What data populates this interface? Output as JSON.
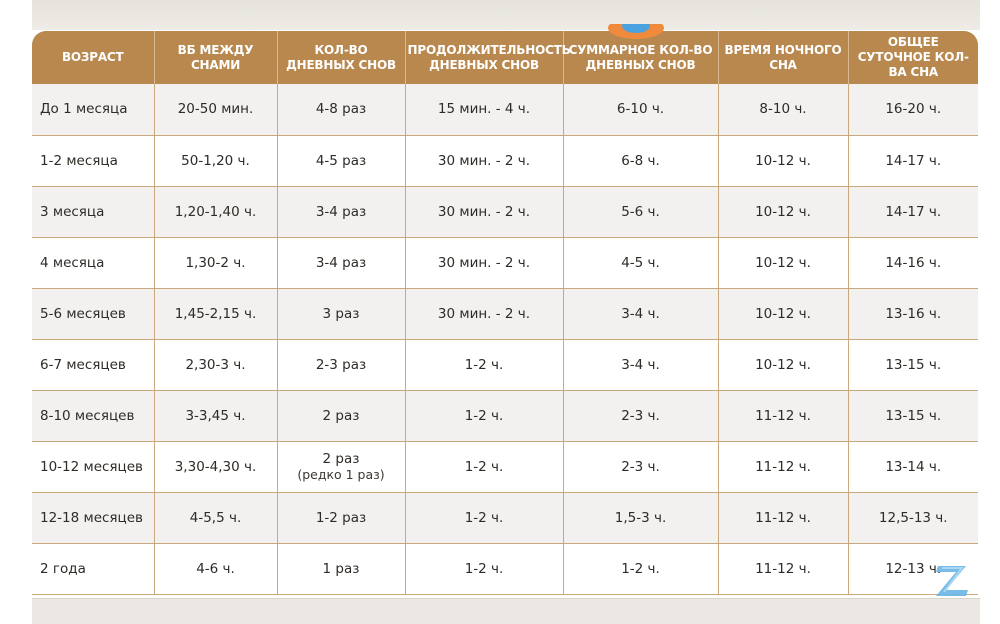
{
  "table": {
    "headers": [
      "Возраст",
      "ВБ между снами",
      "Кол-во дневных снов",
      "Продолжительность дневных снов",
      "Суммарное кол-во дневных снов",
      "Время ночного сна",
      "Общее суточное кол-ва сна"
    ],
    "rows": [
      {
        "age": "До 1 месяца",
        "wake": "20-50 мин.",
        "naps": "4-8 раз",
        "nap_note": "",
        "nap_len": "15 мин. - 4 ч.",
        "day_total": "6-10 ч.",
        "night": "8-10 ч.",
        "total": "16-20 ч."
      },
      {
        "age": "1-2 месяца",
        "wake": "50-1,20 ч.",
        "naps": "4-5 раз",
        "nap_note": "",
        "nap_len": "30 мин. - 2 ч.",
        "day_total": "6-8 ч.",
        "night": "10-12 ч.",
        "total": "14-17 ч."
      },
      {
        "age": "3 месяца",
        "wake": "1,20-1,40 ч.",
        "naps": "3-4 раз",
        "nap_note": "",
        "nap_len": "30 мин. - 2 ч.",
        "day_total": "5-6 ч.",
        "night": "10-12 ч.",
        "total": "14-17 ч."
      },
      {
        "age": "4 месяца",
        "wake": "1,30-2 ч.",
        "naps": "3-4 раз",
        "nap_note": "",
        "nap_len": "30 мин. - 2 ч.",
        "day_total": "4-5 ч.",
        "night": "10-12 ч.",
        "total": "14-16 ч."
      },
      {
        "age": "5-6 месяцев",
        "wake": "1,45-2,15 ч.",
        "naps": "3 раз",
        "nap_note": "",
        "nap_len": "30 мин. - 2 ч.",
        "day_total": "3-4 ч.",
        "night": "10-12 ч.",
        "total": "13-16 ч."
      },
      {
        "age": "6-7 месяцев",
        "wake": "2,30-3 ч.",
        "naps": "2-3 раз",
        "nap_note": "",
        "nap_len": "1-2 ч.",
        "day_total": "3-4 ч.",
        "night": "10-12 ч.",
        "total": "13-15 ч."
      },
      {
        "age": "8-10 месяцев",
        "wake": "3-3,45 ч.",
        "naps": "2 раз",
        "nap_note": "",
        "nap_len": "1-2 ч.",
        "day_total": "2-3 ч.",
        "night": "11-12 ч.",
        "total": "13-15 ч."
      },
      {
        "age": "10-12 месяцев",
        "wake": "3,30-4,30 ч.",
        "naps": "2 раз",
        "nap_note": "(редко 1 раз)",
        "nap_len": "1-2 ч.",
        "day_total": "2-3 ч.",
        "night": "11-12 ч.",
        "total": "13-14 ч."
      },
      {
        "age": "12-18 месяцев",
        "wake": "4-5,5 ч.",
        "naps": "1-2 раз",
        "nap_note": "",
        "nap_len": "1-2 ч.",
        "day_total": "1,5-3 ч.",
        "night": "11-12 ч.",
        "total": "12,5-13 ч."
      },
      {
        "age": "2 года",
        "wake": "4-6 ч.",
        "naps": "1 раз",
        "nap_note": "",
        "nap_len": "1-2 ч.",
        "day_total": "1-2 ч.",
        "night": "11-12 ч.",
        "total": "12-13 ч."
      }
    ]
  },
  "colors": {
    "header_bg": "#b8884f",
    "header_text": "#ffffff",
    "row_alt": "#f2f1ef",
    "grid": "#c9a87e",
    "logo": "#6cb6e6"
  },
  "icons": {
    "mascot": "mascot-icon",
    "watermark": "z-logo-icon"
  }
}
